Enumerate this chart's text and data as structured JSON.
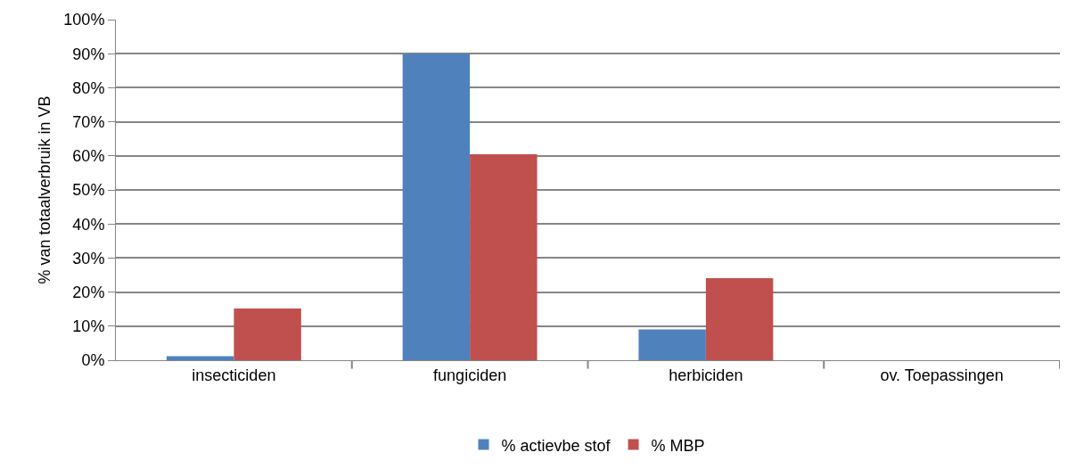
{
  "chart_data": {
    "type": "bar",
    "ylabel": "% van totaalverbruik in VB",
    "categories": [
      "insecticiden",
      "fungiciden",
      "herbiciden",
      "ov. Toepassingen"
    ],
    "series": [
      {
        "name": "% actievbe stof",
        "color": "#4f81bd",
        "values": [
          1.2,
          90,
          9,
          0
        ]
      },
      {
        "name": "% MBP",
        "color": "#c0504d",
        "values": [
          15.2,
          60.5,
          24.1,
          0
        ]
      }
    ],
    "ylim": [
      0,
      100
    ],
    "yticks": [
      {
        "value": 0,
        "label": "0%"
      },
      {
        "value": 10,
        "label": "10%"
      },
      {
        "value": 20,
        "label": "20%"
      },
      {
        "value": 30,
        "label": "30%"
      },
      {
        "value": 40,
        "label": "40%"
      },
      {
        "value": 50,
        "label": "50%"
      },
      {
        "value": 60,
        "label": "60%"
      },
      {
        "value": 70,
        "label": "70%"
      },
      {
        "value": 80,
        "label": "80%"
      },
      {
        "value": 90,
        "label": "90%"
      },
      {
        "value": 100,
        "label": "100%"
      }
    ],
    "grid": "y",
    "legend": "bottom"
  }
}
